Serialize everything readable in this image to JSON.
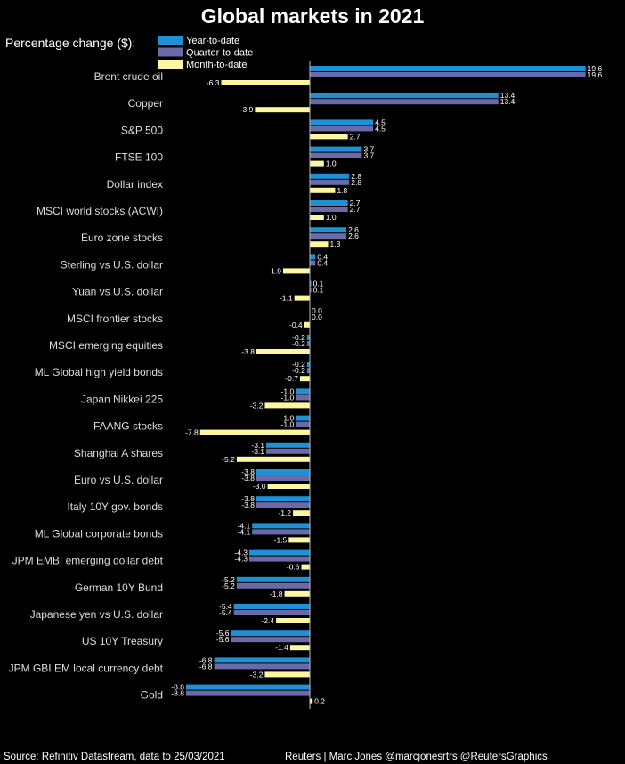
{
  "chart_data": {
    "type": "bar",
    "orientation": "horizontal",
    "title": "Global markets in 2021",
    "subtitle": "Percentage change ($):",
    "series": [
      {
        "name": "Year-to-date",
        "color": "#1f8fd6",
        "values": [
          19.6,
          13.4,
          4.5,
          3.7,
          2.8,
          2.7,
          2.6,
          0.4,
          0.1,
          0.0,
          -0.2,
          -0.2,
          -1.0,
          -1.0,
          -3.1,
          -3.8,
          -3.8,
          -4.1,
          -4.3,
          -5.2,
          -5.4,
          -5.6,
          -6.8,
          -8.8
        ]
      },
      {
        "name": "Quarter-to-date",
        "color": "#6a6aa8",
        "values": [
          19.6,
          13.4,
          4.5,
          3.7,
          2.8,
          2.7,
          2.6,
          0.4,
          0.1,
          0.0,
          -0.2,
          -0.2,
          -1.0,
          -1.0,
          -3.1,
          -3.8,
          -3.8,
          -4.1,
          -4.3,
          -5.2,
          -5.4,
          -5.6,
          -6.8,
          -8.8
        ]
      },
      {
        "name": "Month-to-date",
        "color": "#fdf6a3",
        "values": [
          -6.3,
          -3.9,
          2.7,
          1.0,
          1.8,
          1.0,
          1.3,
          -1.9,
          -1.1,
          -0.4,
          -3.8,
          -0.7,
          -3.2,
          -7.8,
          -5.2,
          -3.0,
          -1.2,
          -1.5,
          -0.6,
          -1.8,
          -2.4,
          -1.4,
          -3.2,
          0.2
        ]
      }
    ],
    "categories": [
      "Brent crude oil",
      "Copper",
      "S&P 500",
      "FTSE 100",
      "Dollar index",
      "MSCI world stocks (ACWI)",
      "Euro zone stocks",
      "Sterling vs U.S. dollar",
      "Yuan vs U.S. dollar",
      "MSCI frontier stocks",
      "MSCI emerging equities",
      "ML Global high yield bonds",
      "Japan Nikkei 225",
      "FAANG stocks",
      "Shanghai A shares",
      "Euro vs U.S. dollar",
      "Italy 10Y gov. bonds",
      "ML Global corporate bonds",
      "JPM EMBI emerging dollar debt",
      "German 10Y Bund",
      "Japanese yen vs U.S. dollar",
      "US 10Y Treasury",
      "JPM GBI EM local currency debt",
      "Gold"
    ],
    "xlim": [
      -9.2,
      20.2
    ],
    "legend": "top-left",
    "grid": false
  },
  "footer": {
    "source": "Source: Refinitiv Datastream, data to 25/03/2021",
    "credit": "Reuters | Marc Jones @marcjonesrtrs @ReutersGraphics"
  },
  "colors": {
    "background": "#000000",
    "axis": "#bbbbbb",
    "label": "#dddddd"
  }
}
